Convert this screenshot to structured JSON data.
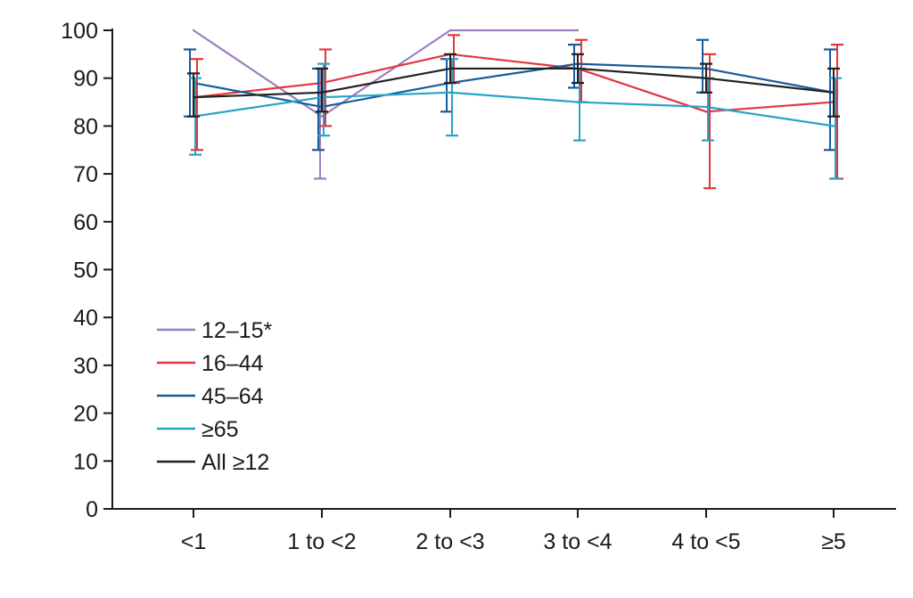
{
  "chart_data": {
    "type": "line",
    "title": "",
    "xlabel": "",
    "ylabel": "",
    "categories": [
      "<1",
      "1 to <2",
      "2 to <3",
      "3 to <4",
      "4 to <5",
      "≥5"
    ],
    "ylim": [
      0,
      100
    ],
    "yticks": [
      0,
      10,
      20,
      30,
      40,
      50,
      60,
      70,
      80,
      90,
      100
    ],
    "grid": false,
    "legend_position": "bottom-left",
    "series": [
      {
        "name": "12–15*",
        "color": "#9b7fbf",
        "values": [
          100,
          82,
          100,
          100,
          null,
          null
        ],
        "lower": [
          null,
          69,
          null,
          null,
          null,
          null
        ],
        "upper": [
          null,
          92,
          null,
          null,
          null,
          null
        ]
      },
      {
        "name": "16–44",
        "color": "#e2373e",
        "values": [
          86,
          89,
          95,
          92,
          83,
          85
        ],
        "lower": [
          75,
          80,
          89,
          85,
          67,
          69
        ],
        "upper": [
          94,
          96,
          99,
          98,
          95,
          97
        ]
      },
      {
        "name": "45–64",
        "color": "#1a5a9a",
        "values": [
          89,
          84,
          89,
          93,
          92,
          87
        ],
        "lower": [
          82,
          75,
          83,
          88,
          87,
          75
        ],
        "upper": [
          96,
          92,
          94,
          97,
          98,
          96
        ]
      },
      {
        "name": "≥65",
        "color": "#27a3c9",
        "values": [
          82,
          86,
          87,
          85,
          84,
          80
        ],
        "lower": [
          74,
          78,
          78,
          77,
          77,
          69
        ],
        "upper": [
          90,
          93,
          94,
          92,
          90,
          90
        ]
      },
      {
        "name": "All ≥12",
        "color": "#222222",
        "values": [
          86,
          87,
          92,
          92,
          90,
          87
        ],
        "lower": [
          82,
          83,
          89,
          89,
          87,
          82
        ],
        "upper": [
          91,
          92,
          95,
          95,
          93,
          92
        ]
      }
    ]
  }
}
